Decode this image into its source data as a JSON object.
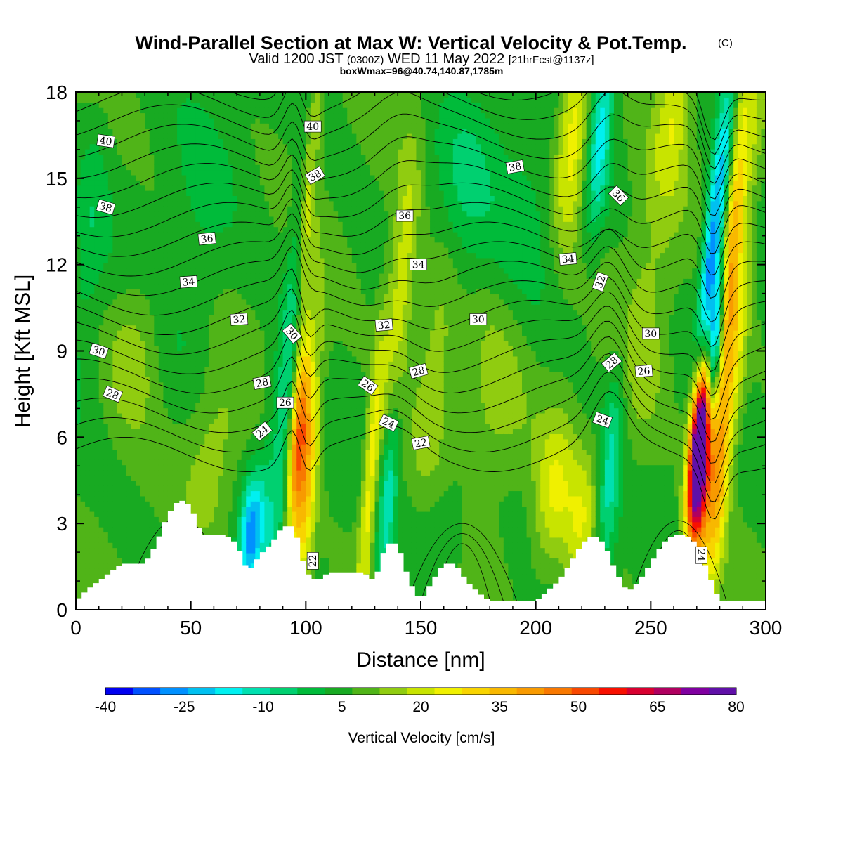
{
  "chart_data": {
    "type": "heatmap",
    "title": "Wind-Parallel Section at Max W: Vertical Velocity & Pot.Temp.",
    "title_mark": "(C)",
    "subtitle": {
      "valid": "Valid 1200 JST",
      "utc": "(0300Z)",
      "date": "WED 11 May 2022",
      "fcst": "[21hrFcst@1137z]"
    },
    "box_info": "boxWmax=96@40.74,140.87,1785m",
    "xlabel": "Distance [nm]",
    "ylabel": "Height [Kft MSL]",
    "xlim": [
      0,
      300
    ],
    "ylim": [
      0,
      18
    ],
    "xticks": [
      "0",
      "50",
      "100",
      "150",
      "200",
      "250",
      "300"
    ],
    "yticks": [
      "0",
      "3",
      "6",
      "9",
      "12",
      "15",
      "18"
    ],
    "terrain": [
      [
        0,
        0.3
      ],
      [
        5,
        0.7
      ],
      [
        10,
        1.0
      ],
      [
        15,
        1.3
      ],
      [
        20,
        1.6
      ],
      [
        30,
        1.6
      ],
      [
        35,
        2.3
      ],
      [
        40,
        3.3
      ],
      [
        45,
        3.85
      ],
      [
        50,
        3.6
      ],
      [
        55,
        2.6
      ],
      [
        65,
        2.6
      ],
      [
        70,
        2.3
      ],
      [
        75,
        1.3
      ],
      [
        80,
        1.9
      ],
      [
        85,
        2.3
      ],
      [
        90,
        2.9
      ],
      [
        95,
        2.9
      ],
      [
        100,
        1.3
      ],
      [
        105,
        1.0
      ],
      [
        110,
        1.3
      ],
      [
        125,
        1.3
      ],
      [
        130,
        1.0
      ],
      [
        135,
        2.3
      ],
      [
        140,
        2.3
      ],
      [
        145,
        1.0
      ],
      [
        150,
        0.3
      ],
      [
        155,
        1.0
      ],
      [
        160,
        1.6
      ],
      [
        165,
        1.6
      ],
      [
        170,
        1.0
      ],
      [
        175,
        0.6
      ],
      [
        180,
        0.3
      ],
      [
        200,
        0.3
      ],
      [
        210,
        1.0
      ],
      [
        215,
        1.6
      ],
      [
        220,
        2.3
      ],
      [
        225,
        2.6
      ],
      [
        230,
        2.3
      ],
      [
        235,
        1.3
      ],
      [
        240,
        0.6
      ],
      [
        245,
        1.0
      ],
      [
        250,
        1.6
      ],
      [
        255,
        2.3
      ],
      [
        260,
        2.6
      ],
      [
        265,
        2.6
      ],
      [
        270,
        2.3
      ],
      [
        275,
        1.3
      ],
      [
        280,
        0.3
      ],
      [
        300,
        0.3
      ]
    ],
    "w_features": [
      {
        "x": 97,
        "h": 6.2,
        "sx": 2.8,
        "sh": 2.4,
        "w": 36
      },
      {
        "x": 100,
        "h": 4.2,
        "sx": 3.5,
        "sh": 3.5,
        "w": 24
      },
      {
        "x": 76,
        "h": 2.6,
        "sx": 3.5,
        "sh": 1.4,
        "w": -30
      },
      {
        "x": 88,
        "h": 5.0,
        "sx": 5.0,
        "sh": 4.0,
        "w": -10
      },
      {
        "x": 101,
        "h": 15.5,
        "sx": 3.0,
        "sh": 4.0,
        "w": 16
      },
      {
        "x": 96,
        "h": 12.5,
        "sx": 2.5,
        "sh": 5.0,
        "w": -14
      },
      {
        "x": 128,
        "h": 4.5,
        "sx": 2.5,
        "sh": 3.5,
        "w": 20
      },
      {
        "x": 136,
        "h": 4.2,
        "sx": 2.8,
        "sh": 3.0,
        "w": -18
      },
      {
        "x": 141,
        "h": 10.5,
        "sx": 4.0,
        "sh": 3.5,
        "w": 18
      },
      {
        "x": 156,
        "h": 8.5,
        "sx": 6.0,
        "sh": 3.0,
        "w": 12
      },
      {
        "x": 168,
        "h": 15.0,
        "sx": 10.0,
        "sh": 2.5,
        "w": -9
      },
      {
        "x": 208,
        "h": 4.0,
        "sx": 6.0,
        "sh": 2.0,
        "w": 15
      },
      {
        "x": 220,
        "h": 3.0,
        "sx": 5.0,
        "sh": 1.8,
        "w": 14
      },
      {
        "x": 232,
        "h": 4.5,
        "sx": 3.5,
        "sh": 3.0,
        "w": -16
      },
      {
        "x": 216,
        "h": 16.5,
        "sx": 5.0,
        "sh": 2.5,
        "w": 22
      },
      {
        "x": 228,
        "h": 16.5,
        "sx": 3.5,
        "sh": 2.5,
        "w": -20
      },
      {
        "x": 260,
        "h": 17.5,
        "sx": 5.0,
        "sh": 2.0,
        "w": 14
      },
      {
        "x": 271,
        "h": 5.8,
        "sx": 2.8,
        "sh": 2.0,
        "w": 72
      },
      {
        "x": 273,
        "h": 5.0,
        "sx": 4.0,
        "sh": 3.0,
        "w": 35
      },
      {
        "x": 280,
        "h": 4.5,
        "sx": 3.0,
        "sh": 3.0,
        "w": 20
      },
      {
        "x": 278,
        "h": 9.2,
        "sx": 2.2,
        "sh": 2.0,
        "w": -42
      },
      {
        "x": 275,
        "h": 11.5,
        "sx": 2.5,
        "sh": 2.5,
        "w": -30
      },
      {
        "x": 282,
        "h": 15.5,
        "sx": 3.0,
        "sh": 3.0,
        "w": -22
      },
      {
        "x": 286,
        "h": 9.0,
        "sx": 4.0,
        "sh": 3.0,
        "w": 18
      },
      {
        "x": 285,
        "h": 13.0,
        "sx": 3.0,
        "sh": 3.0,
        "w": 25
      },
      {
        "x": 292,
        "h": 16.0,
        "sx": 4.0,
        "sh": 2.5,
        "w": 10
      },
      {
        "x": 6,
        "h": 13.0,
        "sx": 5.0,
        "sh": 3.0,
        "w": -7
      },
      {
        "x": 25,
        "h": 9.0,
        "sx": 8.0,
        "sh": 2.0,
        "w": 9
      },
      {
        "x": 60,
        "h": 5.5,
        "sx": 8.0,
        "sh": 2.0,
        "w": 9
      },
      {
        "x": 52,
        "h": 12.0,
        "sx": 10.0,
        "sh": 4.0,
        "w": -4
      },
      {
        "x": 182,
        "h": 8.0,
        "sx": 10.0,
        "sh": 3.0,
        "w": 8
      },
      {
        "x": 195,
        "h": 13.0,
        "sx": 12.0,
        "sh": 3.0,
        "w": -6
      },
      {
        "x": 248,
        "h": 10.0,
        "sx": 8.0,
        "sh": 4.0,
        "w": 8
      },
      {
        "x": 160,
        "h": 3.0,
        "sx": 10.0,
        "sh": 1.5,
        "w": -6
      }
    ],
    "theta_levels": [
      22,
      23,
      24,
      25,
      26,
      27,
      28,
      29,
      30,
      31,
      32,
      33,
      34,
      35,
      36,
      37,
      38,
      39,
      40,
      41
    ],
    "contour_labels": [
      {
        "text": "40",
        "x": 13,
        "h": 16.3,
        "rot": 8
      },
      {
        "text": "38",
        "x": 13,
        "h": 14.0,
        "rot": 16
      },
      {
        "text": "36",
        "x": 57,
        "h": 12.9,
        "rot": -6
      },
      {
        "text": "34",
        "x": 49,
        "h": 11.4,
        "rot": -4
      },
      {
        "text": "32",
        "x": 71,
        "h": 10.1,
        "rot": -4
      },
      {
        "text": "30",
        "x": 10,
        "h": 9.0,
        "rot": 18
      },
      {
        "text": "28",
        "x": 16,
        "h": 7.5,
        "rot": 22
      },
      {
        "text": "28",
        "x": 81,
        "h": 7.9,
        "rot": -10
      },
      {
        "text": "26",
        "x": 91,
        "h": 7.2,
        "rot": 0
      },
      {
        "text": "24",
        "x": 81,
        "h": 6.2,
        "rot": -40
      },
      {
        "text": "30",
        "x": 94,
        "h": 9.6,
        "rot": 50
      },
      {
        "text": "40",
        "x": 103,
        "h": 16.8,
        "rot": 0
      },
      {
        "text": "38",
        "x": 104,
        "h": 15.1,
        "rot": -30
      },
      {
        "text": "36",
        "x": 143,
        "h": 13.7,
        "rot": 0
      },
      {
        "text": "34",
        "x": 149,
        "h": 12.0,
        "rot": 0
      },
      {
        "text": "32",
        "x": 134,
        "h": 9.9,
        "rot": -5
      },
      {
        "text": "26",
        "x": 127,
        "h": 7.8,
        "rot": 35
      },
      {
        "text": "28",
        "x": 149,
        "h": 8.3,
        "rot": -15
      },
      {
        "text": "24",
        "x": 136,
        "h": 6.5,
        "rot": 25
      },
      {
        "text": "22",
        "x": 150,
        "h": 5.8,
        "rot": -10
      },
      {
        "text": "30",
        "x": 175,
        "h": 10.1,
        "rot": 0
      },
      {
        "text": "38",
        "x": 191,
        "h": 15.4,
        "rot": -10
      },
      {
        "text": "34",
        "x": 214,
        "h": 12.2,
        "rot": -5
      },
      {
        "text": "36",
        "x": 236,
        "h": 14.4,
        "rot": 45
      },
      {
        "text": "32",
        "x": 228,
        "h": 11.4,
        "rot": -70
      },
      {
        "text": "30",
        "x": 250,
        "h": 9.6,
        "rot": 0
      },
      {
        "text": "28",
        "x": 233,
        "h": 8.6,
        "rot": -40
      },
      {
        "text": "26",
        "x": 247,
        "h": 8.3,
        "rot": -5
      },
      {
        "text": "24",
        "x": 229,
        "h": 6.6,
        "rot": 20
      },
      {
        "text": "22",
        "x": 103,
        "h": 1.7,
        "rot": -90
      },
      {
        "text": "24",
        "x": 272,
        "h": 1.9,
        "rot": 90
      }
    ],
    "colorbar": {
      "label": "Vertical Velocity [cm/s]",
      "min": -40,
      "max": 80,
      "step": 5,
      "tick_labels": [
        "-40",
        "-25",
        "-10",
        "5",
        "20",
        "35",
        "50",
        "65",
        "80"
      ],
      "colors": [
        "#0000f0",
        "#0050ff",
        "#0090ff",
        "#00c0f0",
        "#00f0f0",
        "#00e0b0",
        "#00d070",
        "#00bb3a",
        "#18aa22",
        "#50b418",
        "#90cc10",
        "#c8e400",
        "#f0f000",
        "#f8d400",
        "#f8b800",
        "#f89a00",
        "#f87800",
        "#f84800",
        "#f81000",
        "#d80030",
        "#b00060",
        "#8000a0",
        "#6010a8"
      ]
    }
  }
}
